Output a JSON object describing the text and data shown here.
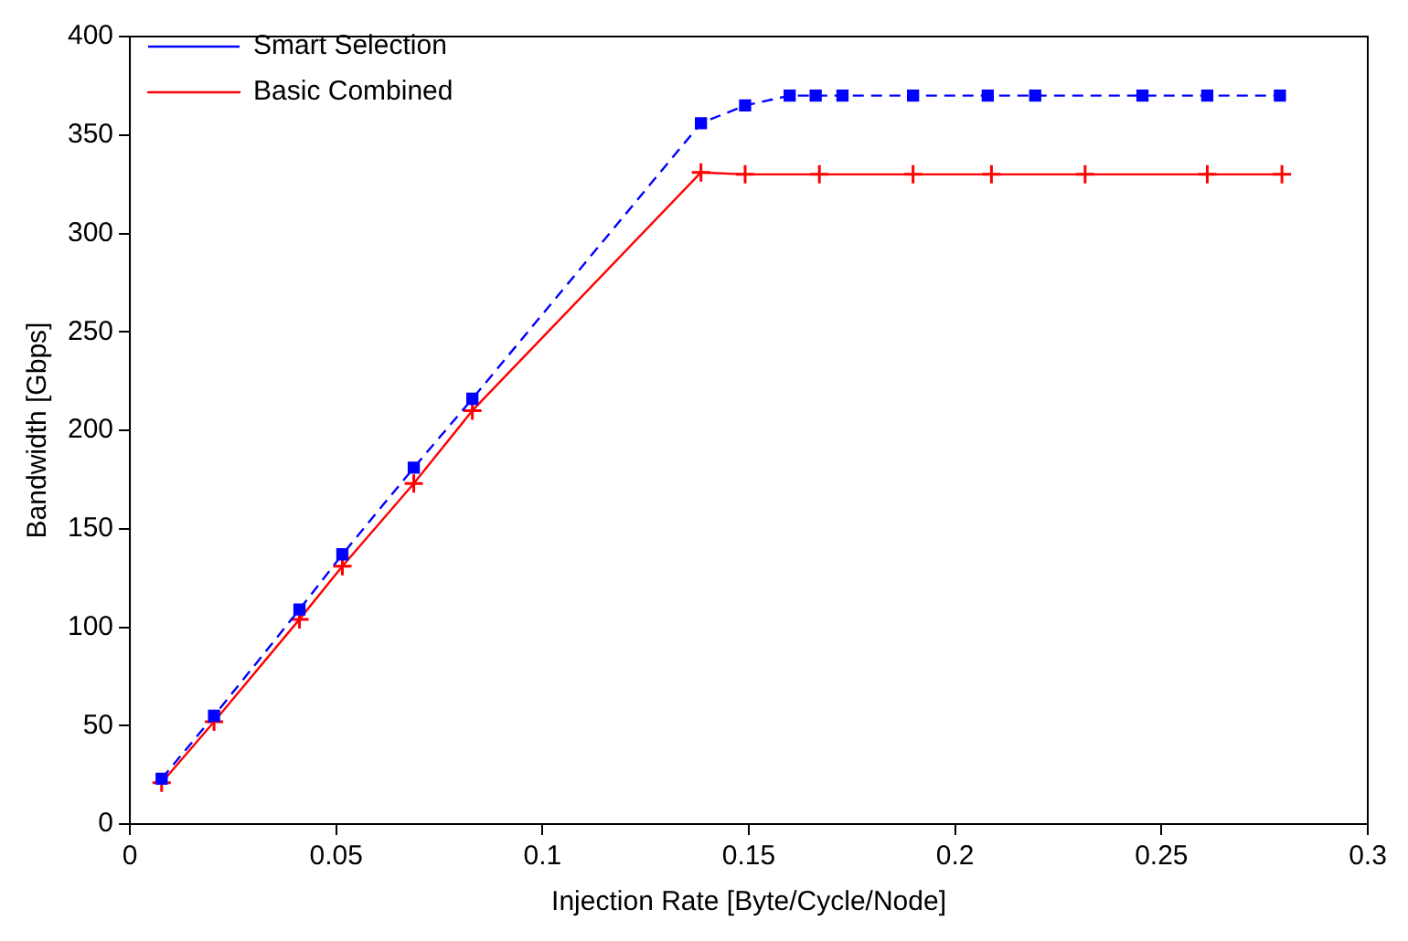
{
  "chart_data": {
    "type": "line",
    "xlabel": "Injection Rate [Byte/Cycle/Node]",
    "ylabel": "Bandwidth [Gbps]",
    "xlim": [
      0,
      0.3
    ],
    "xticks": [
      0,
      0.05,
      0.1,
      0.15,
      0.2,
      0.25,
      0.3
    ],
    "ylim": [
      0,
      400
    ],
    "yticks": [
      0,
      50,
      100,
      150,
      200,
      250,
      300,
      350,
      400
    ],
    "grid": false,
    "legend": "top left",
    "series": [
      {
        "name": "Basic Combined",
        "color": "#ff0000",
        "marker": "cross",
        "line_style": "solid",
        "x": [
          0.0077,
          0.0204,
          0.0411,
          0.0515,
          0.0688,
          0.083,
          0.1384,
          0.1491,
          0.1671,
          0.1898,
          0.2088,
          0.2315,
          0.2611,
          0.2792
        ],
        "values": [
          21,
          52,
          104,
          131,
          173,
          210,
          331,
          330,
          330,
          330,
          330,
          330,
          330,
          330
        ]
      },
      {
        "name": "Smart Selection",
        "color": "#0000ff",
        "marker": "square",
        "line_style": "dashed",
        "x": [
          0.0077,
          0.0204,
          0.0411,
          0.0515,
          0.0688,
          0.083,
          0.1384,
          0.1491,
          0.1599,
          0.1662,
          0.1727,
          0.1898,
          0.2079,
          0.2194,
          0.2454,
          0.2611,
          0.2787
        ],
        "values": [
          23,
          55,
          109,
          137,
          181,
          216,
          356,
          365,
          370,
          370,
          370,
          370,
          370,
          370,
          370,
          370,
          370
        ]
      }
    ]
  }
}
